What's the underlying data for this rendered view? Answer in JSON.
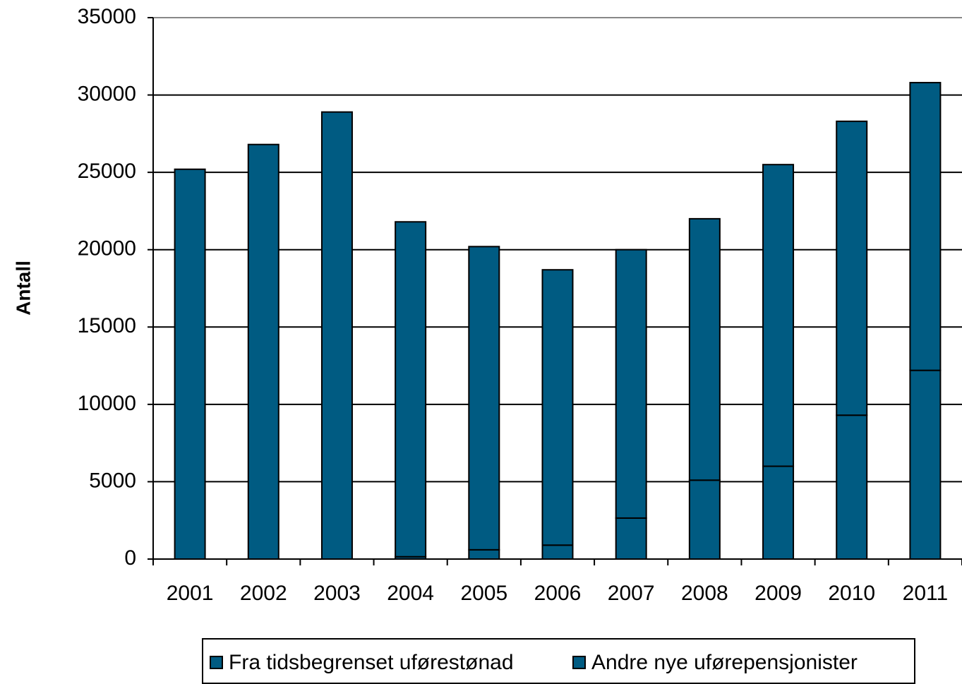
{
  "chart_data": {
    "type": "stacked_bar",
    "y_label": "Antall",
    "categories": [
      "2001",
      "2002",
      "2003",
      "2004",
      "2005",
      "2006",
      "2007",
      "2008",
      "2009",
      "2010",
      "2011"
    ],
    "series": [
      {
        "name": "Fra tidsbegrenset uførestønad",
        "color": "#005b82",
        "values": [
          0,
          0,
          0,
          150,
          600,
          900,
          2650,
          5100,
          6000,
          9300,
          12200
        ]
      },
      {
        "name": "Andre nye uførepensjonister",
        "color": "#005b82",
        "values": [
          25200,
          26800,
          28900,
          21650,
          19600,
          17800,
          17350,
          16900,
          19500,
          19000,
          18600
        ]
      }
    ],
    "ylim": [
      0,
      35000
    ],
    "yticks": [
      0,
      5000,
      10000,
      15000,
      20000,
      25000,
      30000,
      35000
    ],
    "grid": true,
    "legend": "bottom"
  }
}
